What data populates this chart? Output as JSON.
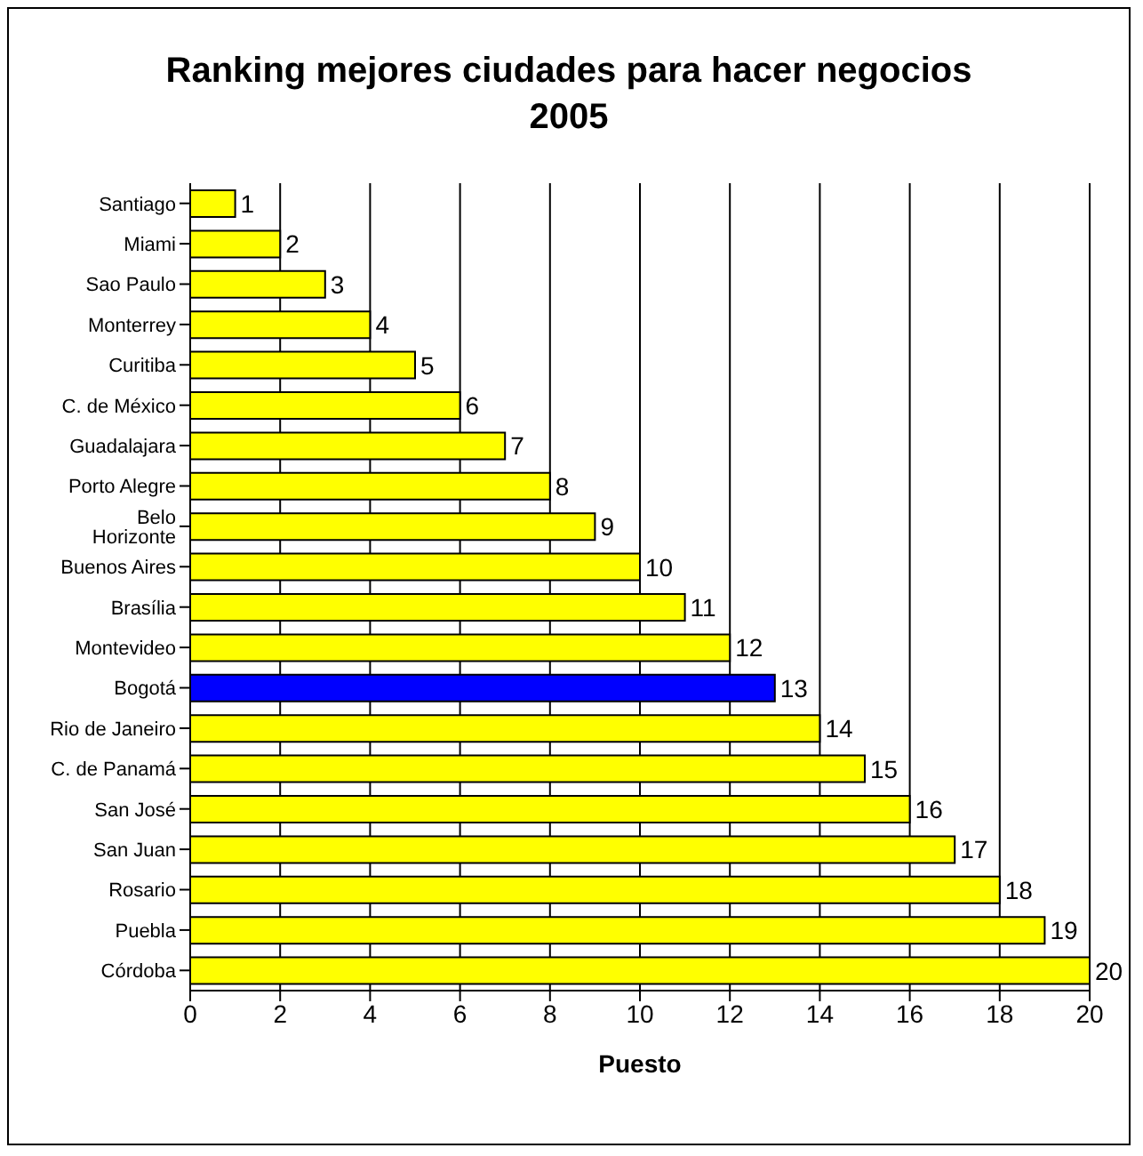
{
  "chart_data": {
    "type": "bar",
    "orientation": "horizontal",
    "title": "Ranking mejores ciudades para hacer negocios\n2005",
    "xlabel": "Puesto",
    "categories": [
      "Santiago",
      "Miami",
      "Sao Paulo",
      "Monterrey",
      "Curitiba",
      "C. de México",
      "Guadalajara",
      "Porto Alegre",
      "Belo Horizonte",
      "Buenos Aires",
      "Brasília",
      "Montevideo",
      "Bogotá",
      "Rio de Janeiro",
      "C. de Panamá",
      "San José",
      "San Juan",
      "Rosario",
      "Puebla",
      "Córdoba"
    ],
    "values": [
      1,
      2,
      3,
      4,
      5,
      6,
      7,
      8,
      9,
      10,
      11,
      12,
      13,
      14,
      15,
      16,
      17,
      18,
      19,
      20
    ],
    "colors": [
      "#ffff00",
      "#ffff00",
      "#ffff00",
      "#ffff00",
      "#ffff00",
      "#ffff00",
      "#ffff00",
      "#ffff00",
      "#ffff00",
      "#ffff00",
      "#ffff00",
      "#ffff00",
      "#0000ff",
      "#ffff00",
      "#ffff00",
      "#ffff00",
      "#ffff00",
      "#ffff00",
      "#ffff00",
      "#ffff00"
    ],
    "xlim": [
      0,
      20
    ],
    "xticks": [
      0,
      2,
      4,
      6,
      8,
      10,
      12,
      14,
      16,
      18,
      20
    ],
    "grid": "x",
    "data_labels": true
  }
}
